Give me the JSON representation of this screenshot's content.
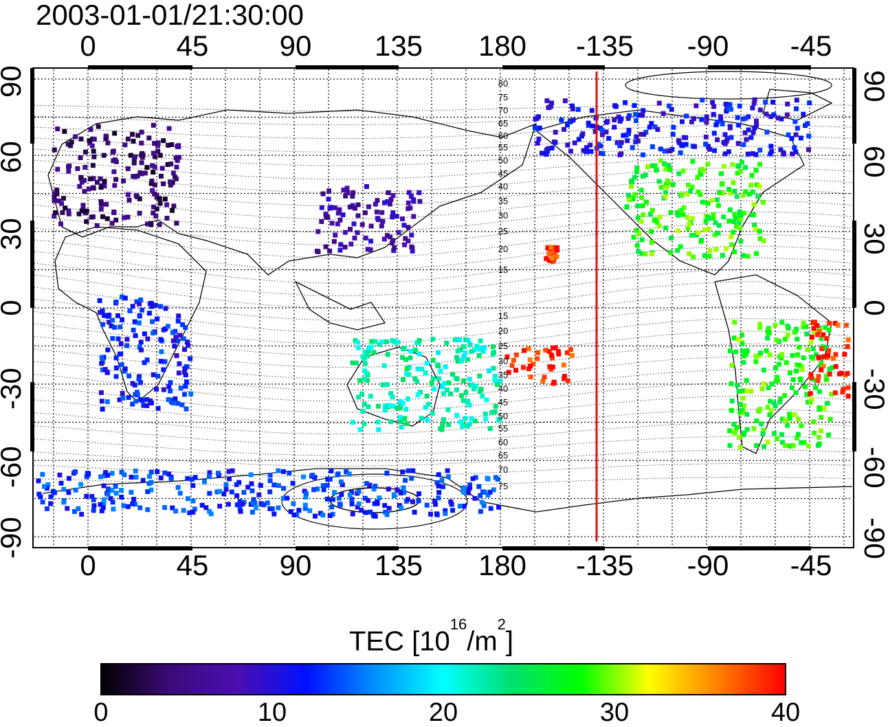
{
  "title": "2003-01-01/21:30:00",
  "map": {
    "lon_axis_labels": [
      "0",
      "45",
      "90",
      "135",
      "180",
      "-135",
      "-90",
      "-45"
    ],
    "lat_axis_labels": [
      "90",
      "60",
      "30",
      "0",
      "-30",
      "-60",
      "-90"
    ],
    "contour_labels_north": [
      "80",
      "75",
      "70",
      "65",
      "60",
      "55",
      "50",
      "45",
      "40",
      "35",
      "30",
      "25",
      "20",
      "15"
    ],
    "contour_labels_south": [
      "15",
      "20",
      "25",
      "30",
      "35",
      "40",
      "45",
      "50",
      "55",
      "60",
      "65",
      "70",
      "75"
    ],
    "terminator_lon": -138,
    "terminator_color": "#e01010"
  },
  "colorbar": {
    "title_main": "TEC  [10",
    "title_exp1": "16",
    "title_mid": "/m",
    "title_exp2": "2",
    "title_end": "]",
    "min": 0,
    "max": 40,
    "tick_labels": [
      "0",
      "10",
      "20",
      "30",
      "40"
    ],
    "colors": [
      "#000000",
      "#3c0a78",
      "#4a0fb0",
      "#0010ff",
      "#0090ff",
      "#00ffff",
      "#00e070",
      "#00ff00",
      "#ffff00",
      "#ff8000",
      "#ff0000"
    ]
  },
  "regions": [
    {
      "name": "europe",
      "lon": [
        -15,
        40
      ],
      "lat": [
        32,
        72
      ],
      "tec": 4
    },
    {
      "name": "east-asia",
      "lon": [
        100,
        145
      ],
      "lat": [
        22,
        48
      ],
      "tec": 7
    },
    {
      "name": "north-america",
      "lon": [
        -125,
        -65
      ],
      "lat": [
        20,
        58
      ],
      "tec": 28
    },
    {
      "name": "south-america",
      "lon": [
        -80,
        -35
      ],
      "lat": [
        -55,
        -5
      ],
      "tec": 28
    },
    {
      "name": "australia-nz",
      "lon": [
        115,
        180
      ],
      "lat": [
        -48,
        -12
      ],
      "tec": 22
    },
    {
      "name": "pacific-south",
      "lon": [
        -178,
        -148
      ],
      "lat": [
        -30,
        -15
      ],
      "tec": 39
    },
    {
      "name": "hawaii",
      "lon": [
        -160,
        -155
      ],
      "lat": [
        18,
        24
      ],
      "tec": 39
    },
    {
      "name": "antarctica",
      "lon": [
        -25,
        180
      ],
      "lat": [
        -82,
        -64
      ],
      "tec": 13
    },
    {
      "name": "arctic-canada",
      "lon": [
        -165,
        -45
      ],
      "lat": [
        60,
        82
      ],
      "tec": 11
    },
    {
      "name": "africa",
      "lon": [
        5,
        45
      ],
      "lat": [
        -40,
        5
      ],
      "tec": 12
    },
    {
      "name": "atlantic-south",
      "lon": [
        -45,
        -25
      ],
      "lat": [
        -35,
        -5
      ],
      "tec": 39
    }
  ]
}
